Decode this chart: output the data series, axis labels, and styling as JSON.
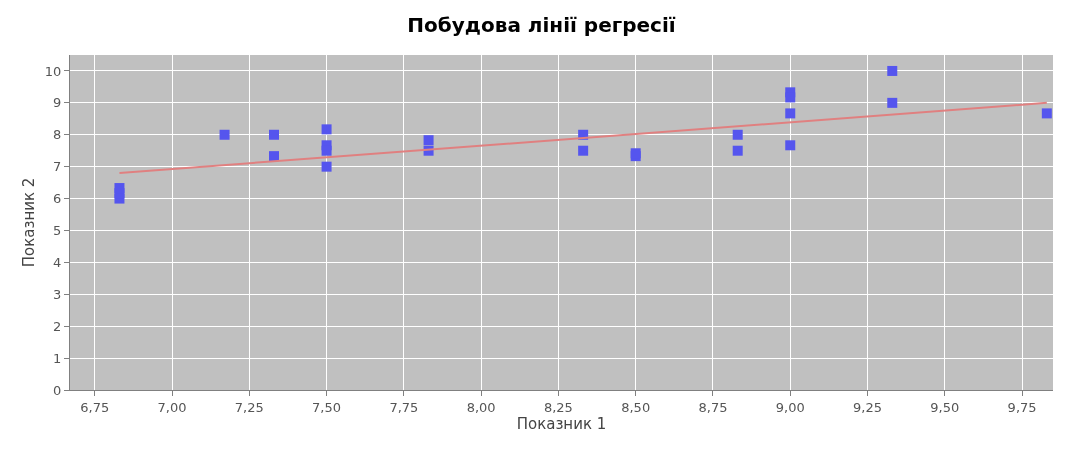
{
  "chart_data": {
    "type": "scatter",
    "title": "Побудова лінії регресії",
    "xlabel": "Показник 1",
    "ylabel": "Показник 2",
    "xlim": [
      6.67,
      9.85
    ],
    "ylim": [
      0,
      10.5
    ],
    "xticks": [
      {
        "value": 6.75,
        "label": "6,75"
      },
      {
        "value": 7.0,
        "label": "7,00"
      },
      {
        "value": 7.25,
        "label": "7,25"
      },
      {
        "value": 7.5,
        "label": "7,50"
      },
      {
        "value": 7.75,
        "label": "7,75"
      },
      {
        "value": 8.0,
        "label": "8,00"
      },
      {
        "value": 8.25,
        "label": "8,25"
      },
      {
        "value": 8.5,
        "label": "8,50"
      },
      {
        "value": 8.75,
        "label": "8,75"
      },
      {
        "value": 9.0,
        "label": "9,00"
      },
      {
        "value": 9.25,
        "label": "9,25"
      },
      {
        "value": 9.5,
        "label": "9,50"
      },
      {
        "value": 9.75,
        "label": "9,75"
      }
    ],
    "yticks": [
      0,
      1,
      2,
      3,
      4,
      5,
      6,
      7,
      8,
      9,
      10
    ],
    "grid": true,
    "series": [
      {
        "marker": "square",
        "color": "#5555ee",
        "x": [
          6.83,
          6.83,
          6.83,
          7.17,
          7.33,
          7.33,
          7.5,
          7.5,
          7.5,
          7.5,
          7.83,
          7.83,
          8.33,
          8.33,
          8.5,
          8.5,
          8.83,
          8.83,
          9.0,
          9.0,
          9.0,
          9.0,
          9.33,
          9.33,
          9.83
        ],
        "values": [
          6.0,
          6.17,
          6.33,
          8.0,
          8.0,
          7.33,
          8.17,
          7.67,
          7.5,
          7.0,
          7.83,
          7.5,
          8.0,
          7.5,
          7.33,
          7.42,
          8.0,
          7.5,
          9.33,
          9.17,
          8.67,
          7.67,
          10.0,
          9.0,
          8.67
        ]
      },
      {
        "type": "line",
        "marker": "none",
        "line_style": "solid",
        "color": "#e08080",
        "x": [
          6.83,
          9.83
        ],
        "values": [
          6.8,
          9.0
        ]
      }
    ]
  }
}
